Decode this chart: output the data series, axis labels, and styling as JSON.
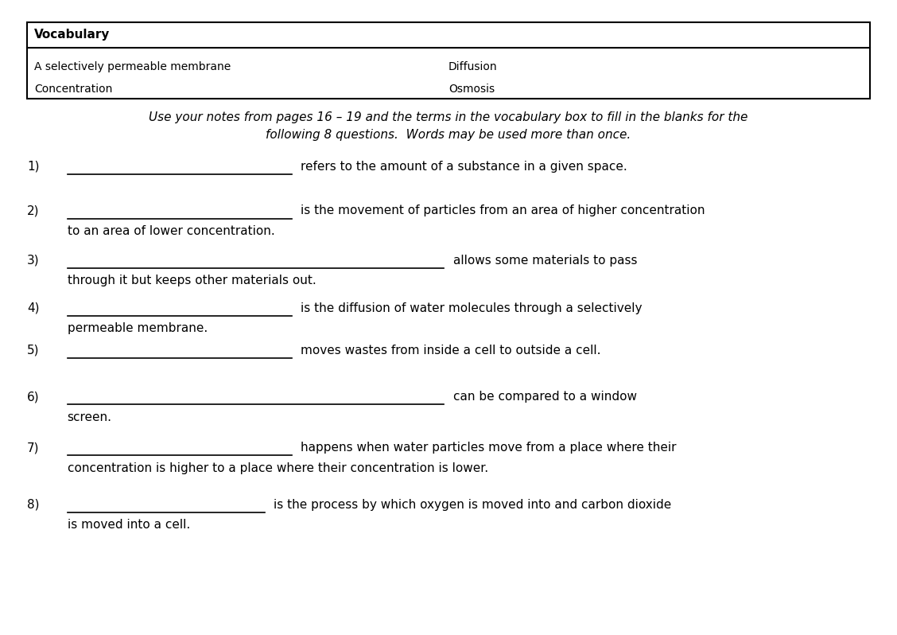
{
  "bg_color": "#ffffff",
  "vocab_title": "Vocabulary",
  "vocab_col1": [
    "A selectively permeable membrane",
    "Concentration"
  ],
  "vocab_col2": [
    "Diffusion",
    "Osmosis"
  ],
  "instructions": "Use your notes from pages 16 – 19 and the terms in the vocabulary box to fill in the blanks for the\nfollowing 8 questions.  Words may be used more than once.",
  "questions": [
    {
      "num": "1)",
      "line_width": 0.25,
      "text": "refers to the amount of a substance in a given space.",
      "continuation": null
    },
    {
      "num": "2)",
      "line_width": 0.25,
      "text": "is the movement of particles from an area of higher concentration",
      "continuation": "to an area of lower concentration."
    },
    {
      "num": "3)",
      "line_width": 0.42,
      "text": "allows some materials to pass",
      "continuation": "through it but keeps other materials out."
    },
    {
      "num": "4)",
      "line_width": 0.25,
      "text": "is the diffusion of water molecules through a selectively",
      "continuation": "permeable membrane."
    },
    {
      "num": "5)",
      "line_width": 0.25,
      "text": "moves wastes from inside a cell to outside a cell.",
      "continuation": null
    },
    {
      "num": "6)",
      "line_width": 0.42,
      "text": "can be compared to a window",
      "continuation": "screen."
    },
    {
      "num": "7)",
      "line_width": 0.25,
      "text": "happens when water particles move from a place where their",
      "continuation": "concentration is higher to a place where their concentration is lower."
    },
    {
      "num": "8)",
      "line_width": 0.22,
      "text": "is the process by which oxygen is moved into and carbon dioxide",
      "continuation": "is moved into a cell."
    }
  ],
  "title_fontsize": 11,
  "vocab_fontsize": 10,
  "instr_fontsize": 11,
  "q_fontsize": 11
}
